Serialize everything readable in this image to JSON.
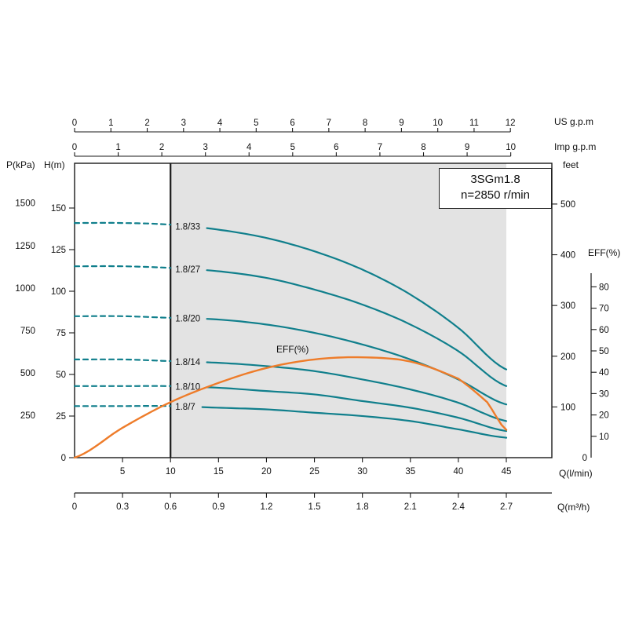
{
  "title_box": {
    "model": "3SGm1.8",
    "speed": "n=2850 r/min"
  },
  "chart_data": {
    "type": "line",
    "title": "3SGm1.8",
    "subtitle": "n=2850 r/min",
    "colors": {
      "curve": "#107f8c",
      "eff": "#ee7c2a",
      "region": "#e3e3e3",
      "axis": "#1a1a1a"
    },
    "axes": {
      "top_us": {
        "label": "US g.p.m",
        "ticks": [
          0,
          1,
          2,
          3,
          4,
          5,
          6,
          7,
          8,
          9,
          10,
          11,
          12
        ]
      },
      "top_imp": {
        "label": "Imp g.p.m",
        "ticks": [
          0,
          1,
          2,
          3,
          4,
          5,
          6,
          7,
          8,
          9,
          10
        ]
      },
      "left_p": {
        "label": "P(kPa)",
        "ticks": [
          250,
          500,
          750,
          1000,
          1250,
          1500
        ]
      },
      "left_h": {
        "label": "H(m)",
        "ticks": [
          0,
          25,
          50,
          75,
          100,
          125,
          150
        ]
      },
      "right_feet": {
        "label": "feet",
        "ticks": [
          100,
          200,
          300,
          400,
          500
        ]
      },
      "right_eff": {
        "label": "EFF(%)",
        "ticks": [
          0,
          10,
          20,
          30,
          40,
          50,
          60,
          70,
          80
        ]
      },
      "bottom_lmin": {
        "label": "Q(l/min)",
        "ticks": [
          5,
          10,
          15,
          20,
          25,
          30,
          35,
          40,
          45
        ]
      },
      "bottom_m3h": {
        "label": "Q(m³/h)",
        "ticks": [
          0,
          0.3,
          0.6,
          0.9,
          1.2,
          1.5,
          1.8,
          2.1,
          2.4,
          2.7
        ]
      }
    },
    "q_lmin": [
      0,
      5,
      10,
      15,
      20,
      25,
      30,
      35,
      40,
      45
    ],
    "series": [
      {
        "name": "1.8/33",
        "head_m": [
          141,
          141,
          140,
          137,
          132,
          124,
          113,
          98,
          78,
          53
        ]
      },
      {
        "name": "1.8/27",
        "head_m": [
          115,
          115,
          114,
          112,
          108,
          101,
          92,
          80,
          64,
          43
        ]
      },
      {
        "name": "1.8/20",
        "head_m": [
          85,
          85,
          84,
          83,
          80,
          75,
          68,
          59,
          47,
          32
        ]
      },
      {
        "name": "1.8/14",
        "head_m": [
          59,
          59,
          58,
          57,
          55,
          52,
          47,
          41,
          33,
          22
        ]
      },
      {
        "name": "1.8/10",
        "head_m": [
          43,
          43,
          43,
          42,
          40,
          38,
          34,
          30,
          24,
          16
        ]
      },
      {
        "name": "1.8/7",
        "head_m": [
          31,
          31,
          31,
          30,
          29,
          27,
          25,
          22,
          17,
          12
        ]
      }
    ],
    "efficiency": {
      "label": "EFF(%)",
      "q_lmin": [
        0,
        5,
        10,
        15,
        20,
        25,
        30,
        35,
        40,
        43,
        45
      ],
      "eff_pct": [
        0,
        14,
        26,
        35,
        42,
        46,
        47,
        45,
        37,
        26,
        13
      ]
    },
    "operating_range_lmin": [
      10,
      45
    ],
    "dashed_below_lmin": 10
  }
}
